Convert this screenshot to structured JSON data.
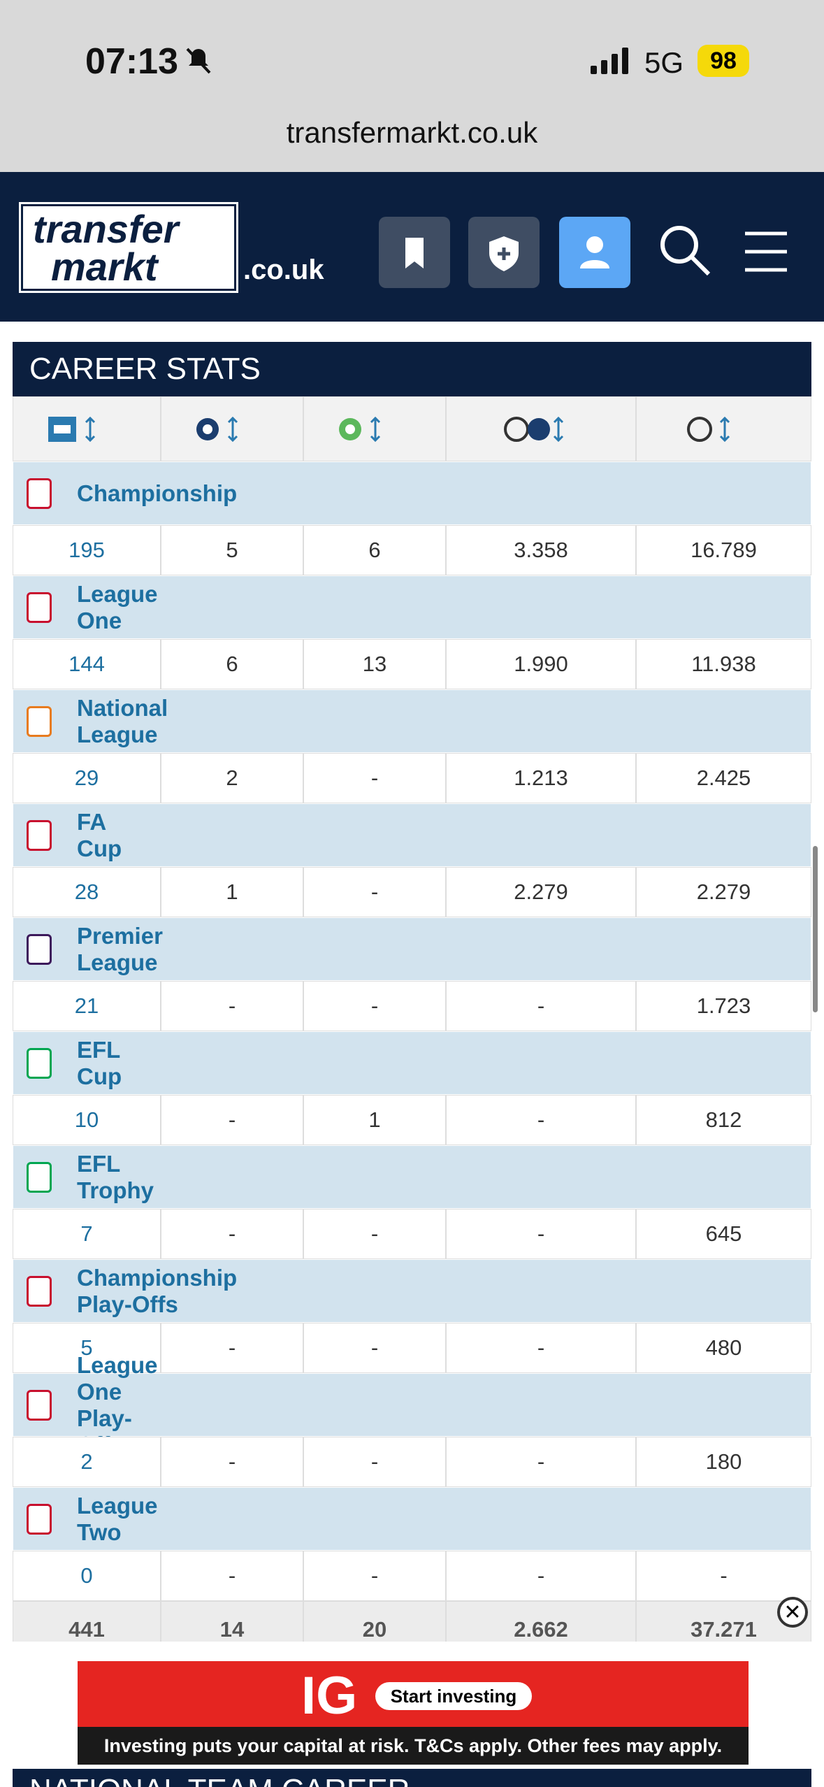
{
  "status_bar": {
    "time": "07:13",
    "network": "5G",
    "battery": "98"
  },
  "browser": {
    "url": "transfermarkt.co.uk"
  },
  "header": {
    "logo_top": "transfer",
    "logo_bottom": "markt",
    "domain": ".co.uk"
  },
  "career_stats": {
    "title": "CAREER STATS",
    "rows": [
      {
        "competition": "Championship",
        "values": [
          "195",
          "5",
          "6",
          "3.358",
          "16.789"
        ]
      },
      {
        "competition": "League One",
        "values": [
          "144",
          "6",
          "13",
          "1.990",
          "11.938"
        ]
      },
      {
        "competition": "National League",
        "values": [
          "29",
          "2",
          "-",
          "1.213",
          "2.425"
        ]
      },
      {
        "competition": "FA Cup",
        "values": [
          "28",
          "1",
          "-",
          "2.279",
          "2.279"
        ]
      },
      {
        "competition": "Premier League",
        "values": [
          "21",
          "-",
          "-",
          "-",
          "1.723"
        ]
      },
      {
        "competition": "EFL Cup",
        "values": [
          "10",
          "-",
          "1",
          "-",
          "812"
        ]
      },
      {
        "competition": "EFL Trophy",
        "values": [
          "7",
          "-",
          "-",
          "-",
          "645"
        ]
      },
      {
        "competition": "Championship Play-Offs",
        "values": [
          "5",
          "-",
          "-",
          "-",
          "480"
        ]
      },
      {
        "competition": "League One Play-Offs",
        "values": [
          "2",
          "-",
          "-",
          "-",
          "180"
        ]
      },
      {
        "competition": "League Two",
        "values": [
          "0",
          "-",
          "-",
          "-",
          "-"
        ]
      }
    ],
    "totals": [
      "441",
      "14",
      "20",
      "2.662",
      "37.271"
    ]
  },
  "ad": {
    "brand": "IG",
    "button": "Start investing",
    "disclaimer": "Investing puts your capital at risk. T&Cs apply. Other fees may apply."
  },
  "next_section": {
    "title": "NATIONAL TEAM CAREER"
  }
}
